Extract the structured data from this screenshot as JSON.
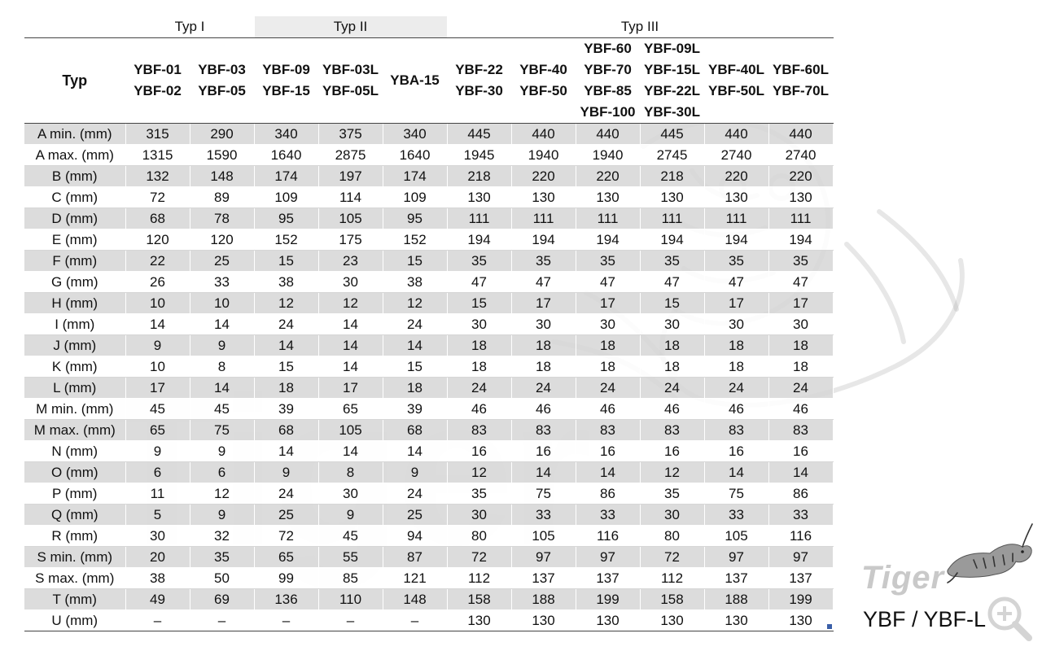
{
  "groups": [
    {
      "label": "",
      "span": 1
    },
    {
      "label": "Typ I",
      "span": 2
    },
    {
      "label": "Typ II",
      "span": 3
    },
    {
      "label": "Typ III",
      "span": 6
    }
  ],
  "corner_label": "Typ",
  "columns": [
    [
      "YBF-01",
      "YBF-02"
    ],
    [
      "YBF-03",
      "YBF-05"
    ],
    [
      "YBF-09",
      "YBF-15"
    ],
    [
      "YBF-03L",
      "YBF-05L"
    ],
    [
      "YBA-15"
    ],
    [
      "YBF-22",
      "YBF-30"
    ],
    [
      "YBF-40",
      "YBF-50"
    ],
    [
      "YBF-60",
      "YBF-70",
      "YBF-85",
      "YBF-100"
    ],
    [
      "YBF-09L",
      "YBF-15L",
      "YBF-22L",
      "YBF-30L"
    ],
    [
      "YBF-40L",
      "YBF-50L"
    ],
    [
      "YBF-60L",
      "YBF-70L"
    ]
  ],
  "rows": [
    {
      "label": "A min. (mm)",
      "values": [
        "315",
        "290",
        "340",
        "375",
        "340",
        "445",
        "440",
        "440",
        "445",
        "440",
        "440"
      ]
    },
    {
      "label": "A max. (mm)",
      "values": [
        "1315",
        "1590",
        "1640",
        "2875",
        "1640",
        "1945",
        "1940",
        "1940",
        "2745",
        "2740",
        "2740"
      ]
    },
    {
      "label": "B (mm)",
      "values": [
        "132",
        "148",
        "174",
        "197",
        "174",
        "218",
        "220",
        "220",
        "218",
        "220",
        "220"
      ]
    },
    {
      "label": "C (mm)",
      "values": [
        "72",
        "89",
        "109",
        "114",
        "109",
        "130",
        "130",
        "130",
        "130",
        "130",
        "130"
      ]
    },
    {
      "label": "D (mm)",
      "values": [
        "68",
        "78",
        "95",
        "105",
        "95",
        "111",
        "111",
        "111",
        "111",
        "111",
        "111"
      ]
    },
    {
      "label": "E (mm)",
      "values": [
        "120",
        "120",
        "152",
        "175",
        "152",
        "194",
        "194",
        "194",
        "194",
        "194",
        "194"
      ]
    },
    {
      "label": "F (mm)",
      "values": [
        "22",
        "25",
        "15",
        "23",
        "15",
        "35",
        "35",
        "35",
        "35",
        "35",
        "35"
      ]
    },
    {
      "label": "G (mm)",
      "values": [
        "26",
        "33",
        "38",
        "30",
        "38",
        "47",
        "47",
        "47",
        "47",
        "47",
        "47"
      ]
    },
    {
      "label": "H (mm)",
      "values": [
        "10",
        "10",
        "12",
        "12",
        "12",
        "15",
        "17",
        "17",
        "15",
        "17",
        "17"
      ]
    },
    {
      "label": "I (mm)",
      "values": [
        "14",
        "14",
        "24",
        "14",
        "24",
        "30",
        "30",
        "30",
        "30",
        "30",
        "30"
      ]
    },
    {
      "label": "J (mm)",
      "values": [
        "9",
        "9",
        "14",
        "14",
        "14",
        "18",
        "18",
        "18",
        "18",
        "18",
        "18"
      ]
    },
    {
      "label": "K (mm)",
      "values": [
        "10",
        "8",
        "15",
        "14",
        "15",
        "18",
        "18",
        "18",
        "18",
        "18",
        "18"
      ]
    },
    {
      "label": "L (mm)",
      "values": [
        "17",
        "14",
        "18",
        "17",
        "18",
        "24",
        "24",
        "24",
        "24",
        "24",
        "24"
      ]
    },
    {
      "label": "M min. (mm)",
      "values": [
        "45",
        "45",
        "39",
        "65",
        "39",
        "46",
        "46",
        "46",
        "46",
        "46",
        "46"
      ]
    },
    {
      "label": "M max. (mm)",
      "values": [
        "65",
        "75",
        "68",
        "105",
        "68",
        "83",
        "83",
        "83",
        "83",
        "83",
        "83"
      ]
    },
    {
      "label": "N (mm)",
      "values": [
        "9",
        "9",
        "14",
        "14",
        "14",
        "16",
        "16",
        "16",
        "16",
        "16",
        "16"
      ]
    },
    {
      "label": "O (mm)",
      "values": [
        "6",
        "6",
        "9",
        "8",
        "9",
        "12",
        "14",
        "14",
        "12",
        "14",
        "14"
      ]
    },
    {
      "label": "P (mm)",
      "values": [
        "11",
        "12",
        "24",
        "30",
        "24",
        "35",
        "75",
        "86",
        "35",
        "75",
        "86"
      ]
    },
    {
      "label": "Q (mm)",
      "values": [
        "5",
        "9",
        "25",
        "9",
        "25",
        "30",
        "33",
        "33",
        "30",
        "33",
        "33"
      ]
    },
    {
      "label": "R (mm)",
      "values": [
        "30",
        "32",
        "72",
        "45",
        "94",
        "80",
        "105",
        "116",
        "80",
        "105",
        "116"
      ]
    },
    {
      "label": "S min. (mm)",
      "values": [
        "20",
        "35",
        "65",
        "55",
        "87",
        "72",
        "97",
        "97",
        "72",
        "97",
        "97"
      ]
    },
    {
      "label": "S max. (mm)",
      "values": [
        "38",
        "50",
        "99",
        "85",
        "121",
        "112",
        "137",
        "137",
        "112",
        "137",
        "137"
      ]
    },
    {
      "label": "T (mm)",
      "values": [
        "49",
        "69",
        "136",
        "110",
        "148",
        "158",
        "188",
        "199",
        "158",
        "188",
        "199"
      ]
    },
    {
      "label": "U (mm)",
      "values": [
        "–",
        "–",
        "–",
        "–",
        "–",
        "130",
        "130",
        "130",
        "130",
        "130",
        "130"
      ]
    }
  ],
  "brand": {
    "logo_text": "Tiger",
    "model_label": "YBF / YBF-L"
  },
  "watermark_text": "Tiger",
  "colors": {
    "row_shade": "#d6d6d6",
    "group_shade": "#ececec",
    "text": "#111111",
    "logo_gray": "#c9c9c9",
    "corner_marker": "#3a5fa8"
  },
  "icons": [
    "tiger-watermark-icon",
    "tiger-logo-icon",
    "zoom-in-icon"
  ]
}
